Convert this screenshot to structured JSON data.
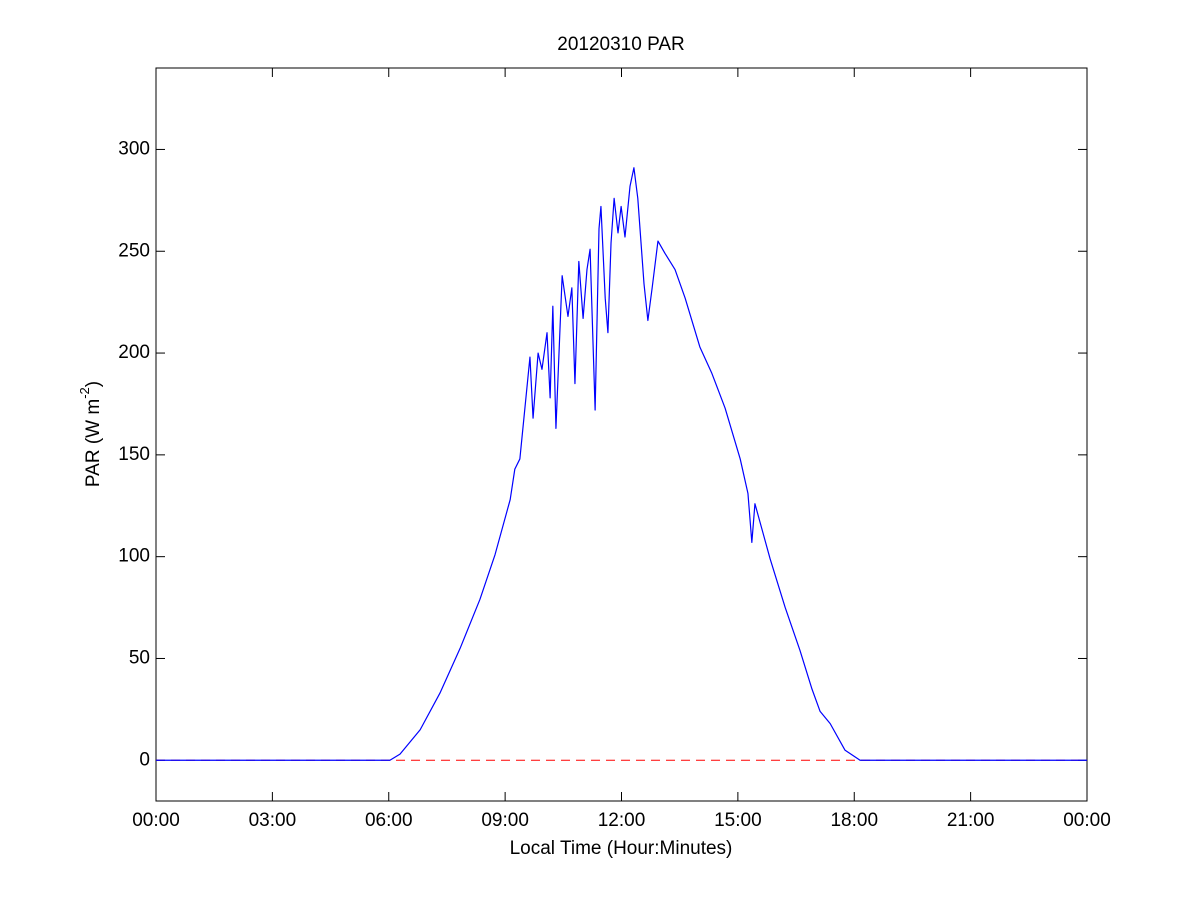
{
  "chart_data": {
    "type": "line",
    "title": "20120310 PAR",
    "x_label": "Local Time (Hour:Minutes)",
    "y_label": [
      "PAR (W m",
      "-2",
      ")"
    ],
    "x": [
      0,
      6.03,
      6.29,
      6.81,
      7.32,
      7.84,
      8.35,
      8.74,
      9.13,
      9.25,
      9.38,
      9.51,
      9.64,
      9.72,
      9.85,
      9.95,
      10.08,
      10.16,
      10.23,
      10.31,
      10.47,
      10.62,
      10.72,
      10.8,
      10.9,
      11.01,
      11.11,
      11.19,
      11.32,
      11.42,
      11.47,
      11.58,
      11.65,
      11.73,
      11.81,
      11.91,
      11.99,
      12.09,
      12.22,
      12.32,
      12.42,
      12.58,
      12.68,
      12.79,
      12.94,
      13.12,
      13.38,
      13.64,
      14.02,
      14.33,
      14.67,
      15.06,
      15.26,
      15.36,
      15.44,
      15.83,
      16.22,
      16.6,
      16.91,
      17.12,
      17.38,
      17.76,
      18.15,
      24
    ],
    "series": [
      {
        "color": "#0000ff",
        "values": [
          0,
          0,
          3,
          15,
          33,
          55,
          79,
          101,
          128,
          143,
          148,
          173,
          198,
          168,
          200,
          192,
          210,
          178,
          223,
          163,
          238,
          218,
          232,
          185,
          245,
          217,
          241,
          251,
          172,
          261,
          272,
          227,
          210,
          254,
          276,
          259,
          272,
          257,
          282,
          291,
          276,
          234,
          216,
          232,
          255,
          249,
          241,
          227,
          203,
          190,
          173,
          148,
          131,
          107,
          126,
          99,
          75,
          54,
          35,
          24,
          18,
          5,
          0,
          0
        ]
      }
    ],
    "reference_line": {
      "value": 0,
      "color": "#ff0000",
      "style": "dashed"
    },
    "xlim": [
      0,
      24
    ],
    "xticks": [
      {
        "value": 0,
        "label": "00:00"
      },
      {
        "value": 3,
        "label": "03:00"
      },
      {
        "value": 6,
        "label": "06:00"
      },
      {
        "value": 9,
        "label": "09:00"
      },
      {
        "value": 12,
        "label": "12:00"
      },
      {
        "value": 15,
        "label": "15:00"
      },
      {
        "value": 18,
        "label": "18:00"
      },
      {
        "value": 21,
        "label": "21:00"
      },
      {
        "value": 24,
        "label": "00:00"
      }
    ],
    "ylim": [
      -20,
      340
    ],
    "yticks": [
      0,
      50,
      100,
      150,
      200,
      250,
      300
    ],
    "grid": false
  }
}
